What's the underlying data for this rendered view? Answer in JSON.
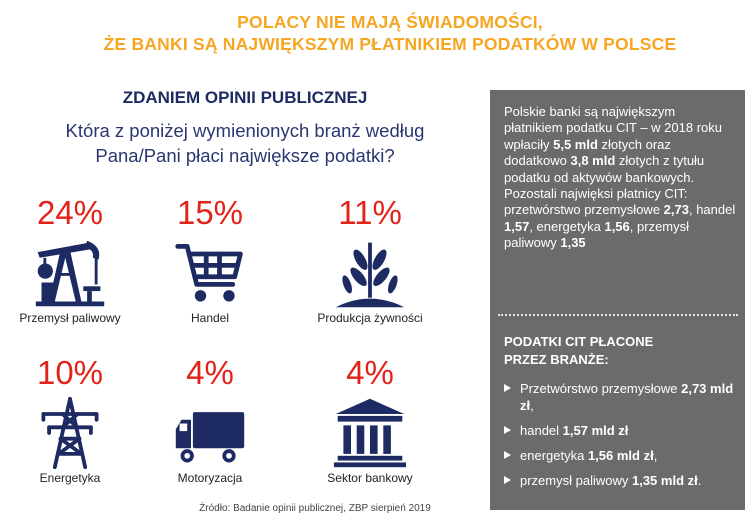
{
  "header": {
    "title_line1": "POLACY NIE MAJĄ ŚWIADOMOŚCI,",
    "title_line2": "ŻE BANKI SĄ NAJWIĘKSZYM PŁATNIKIEM PODATKÓW W POLSCE"
  },
  "survey": {
    "subtitle": "ZDANIEM OPINII PUBLICZNEJ",
    "question_line1": "Która z poniżej wymienionych branż według",
    "question_line2": "Pana/Pani płaci największe podatki?"
  },
  "chart_data": {
    "type": "table",
    "categories": [
      "Przemysł paliwowy",
      "Handel",
      "Produkcja żywności",
      "Energetyka",
      "Motoryzacja",
      "Sektor bankowy"
    ],
    "values": [
      24,
      15,
      11,
      10,
      4,
      4
    ],
    "value_labels": [
      "24%",
      "15%",
      "11%",
      "10%",
      "4%",
      "4%"
    ],
    "icons": [
      "oil-pump-icon",
      "shopping-cart-icon",
      "wheat-plant-icon",
      "power-pylon-icon",
      "truck-icon",
      "bank-building-icon"
    ],
    "value_color": "#e2231a"
  },
  "source": "Źródło: Badanie opinii publicznej, ZBP sierpień 2019",
  "panel": {
    "intro": [
      "Polskie banki są największym płatnikiem podatku CIT – w 2018 roku wpłaciły ",
      "5,5 mld",
      " złotych oraz dodatkowo ",
      "3,8 mld",
      " złotych z tytułu podatku od aktywów bankowych. Pozostali najwięksi płatnicy CIT: przetwórstwo przemysłowe ",
      "2,73",
      ", handel ",
      "1,57",
      ", energetyka ",
      "1,56",
      ", przemysł paliwowy ",
      "1,35"
    ],
    "heading_line1": "PODATKI CIT PŁACONE",
    "heading_line2": "PRZEZ BRANŻE:",
    "items": [
      {
        "label": "Przetwórstwo przemysłowe ",
        "amount": "2,73 mld zł",
        "suffix": ","
      },
      {
        "label": "handel ",
        "amount": "1,57 mld zł",
        "suffix": ""
      },
      {
        "label": "energetyka ",
        "amount": "1,56 mld zł",
        "suffix": ","
      },
      {
        "label": "przemysł paliwowy ",
        "amount": "1,35 mld zł",
        "suffix": "."
      }
    ]
  },
  "colors": {
    "title": "#f5a623",
    "navy": "#1e2b62",
    "panel_bg": "#6b6b6b"
  }
}
